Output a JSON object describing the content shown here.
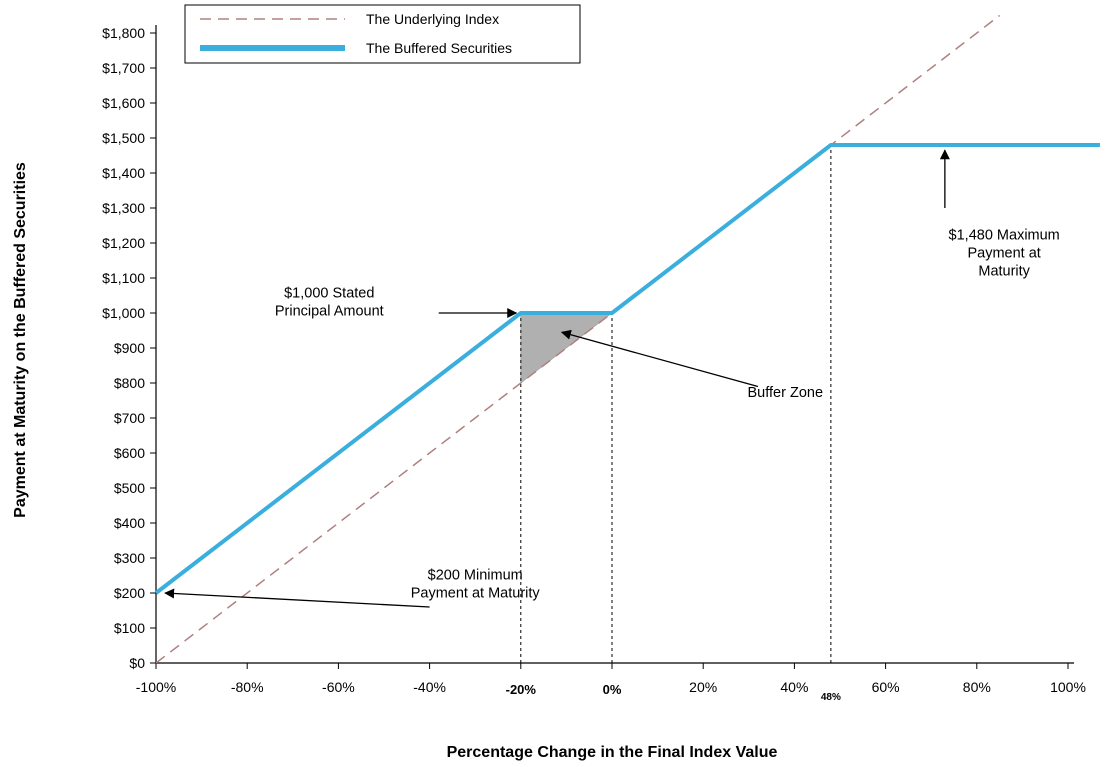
{
  "chart_data": {
    "type": "line",
    "xlabel": "Percentage Change in the Final Index Value",
    "ylabel": "Payment at Maturity on the Buffered Securities",
    "xlim": [
      -100,
      107
    ],
    "ylim": [
      0,
      1850
    ],
    "x_ticks": [
      {
        "value": -100,
        "label": "-100%",
        "style": "normal"
      },
      {
        "value": -80,
        "label": "-80%",
        "style": "normal"
      },
      {
        "value": -60,
        "label": "-60%",
        "style": "normal"
      },
      {
        "value": -40,
        "label": "-40%",
        "style": "normal"
      },
      {
        "value": -20,
        "label": "-20%",
        "style": "bold"
      },
      {
        "value": 0,
        "label": "0%",
        "style": "bold"
      },
      {
        "value": 20,
        "label": "20%",
        "style": "normal"
      },
      {
        "value": 40,
        "label": "40%",
        "style": "normal"
      },
      {
        "value": 48,
        "label": "48%",
        "style": "small"
      },
      {
        "value": 60,
        "label": "60%",
        "style": "normal"
      },
      {
        "value": 80,
        "label": "80%",
        "style": "normal"
      },
      {
        "value": 100,
        "label": "100%",
        "style": "normal"
      }
    ],
    "y_ticks": [
      {
        "value": 0,
        "label": "$0"
      },
      {
        "value": 100,
        "label": "$100"
      },
      {
        "value": 200,
        "label": "$200"
      },
      {
        "value": 300,
        "label": "$300"
      },
      {
        "value": 400,
        "label": "$400"
      },
      {
        "value": 500,
        "label": "$500"
      },
      {
        "value": 600,
        "label": "$600"
      },
      {
        "value": 700,
        "label": "$700"
      },
      {
        "value": 800,
        "label": "$800"
      },
      {
        "value": 900,
        "label": "$900"
      },
      {
        "value": 1000,
        "label": "$1,000"
      },
      {
        "value": 1100,
        "label": "$1,100"
      },
      {
        "value": 1200,
        "label": "$1,200"
      },
      {
        "value": 1300,
        "label": "$1,300"
      },
      {
        "value": 1400,
        "label": "$1,400"
      },
      {
        "value": 1500,
        "label": "$1,500"
      },
      {
        "value": 1600,
        "label": "$1,600"
      },
      {
        "value": 1700,
        "label": "$1,700"
      },
      {
        "value": 1800,
        "label": "$1,800"
      }
    ],
    "series": [
      {
        "name": "The Underlying Index",
        "color": "#b08080",
        "dashed": true,
        "points": [
          [
            -100,
            0
          ],
          [
            85,
            1850
          ]
        ]
      },
      {
        "name": "The Buffered Securities",
        "color": "#3aaedc",
        "dashed": false,
        "points": [
          [
            -100,
            200
          ],
          [
            -20,
            1000
          ],
          [
            0,
            1000
          ],
          [
            48,
            1480
          ],
          [
            107,
            1480
          ]
        ]
      }
    ],
    "buffer_zone": {
      "points": [
        [
          -20,
          800
        ],
        [
          -20,
          1000
        ],
        [
          0,
          1000
        ]
      ],
      "color": "#b0b0b0"
    },
    "reference_lines": [
      {
        "x": -20,
        "y_top": 1000
      },
      {
        "x": 0,
        "y_top": 1000
      },
      {
        "x": 48,
        "y_top": 1480
      }
    ],
    "annotations": [
      {
        "lines": [
          "$1,000 Stated",
          "Principal Amount"
        ],
        "text_at": [
          -62,
          1045
        ],
        "arrow_from": [
          -38,
          1000
        ],
        "arrow_to": [
          -21,
          1000
        ]
      },
      {
        "lines": [
          "Buffer Zone"
        ],
        "text_at": [
          38,
          760
        ],
        "arrow_from": [
          32,
          790
        ],
        "arrow_to": [
          -11,
          945
        ]
      },
      {
        "lines": [
          "$1,480 Maximum",
          "Payment at",
          "Maturity"
        ],
        "text_at": [
          86,
          1210
        ],
        "arrow_from": [
          73,
          1300
        ],
        "arrow_to": [
          73,
          1465
        ]
      },
      {
        "lines": [
          "$200 Minimum",
          "Payment at Maturity"
        ],
        "text_at": [
          -30,
          238
        ],
        "arrow_from": [
          -40,
          160
        ],
        "arrow_to": [
          -98,
          200
        ]
      }
    ],
    "legend": {
      "position": "top-center"
    }
  }
}
